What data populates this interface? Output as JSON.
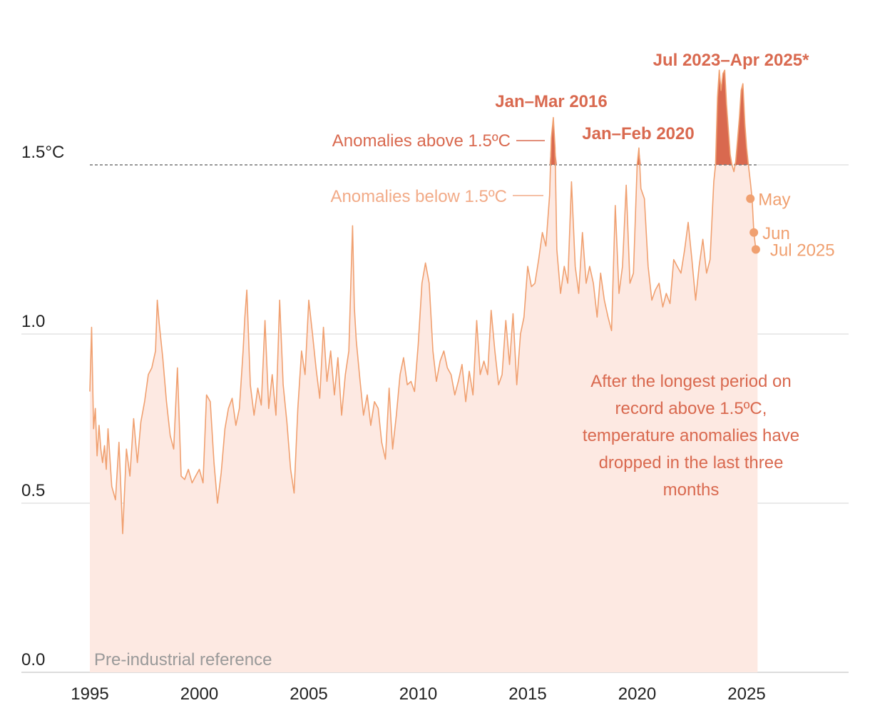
{
  "chart_data": {
    "type": "area",
    "title": "",
    "xlabel": "",
    "ylabel": "",
    "xlim": [
      1995,
      2029
    ],
    "ylim": [
      0,
      1.9
    ],
    "y_ticks": [
      {
        "value": 0.0,
        "label": "0.0"
      },
      {
        "value": 0.5,
        "label": "0.5"
      },
      {
        "value": 1.0,
        "label": "1.0"
      },
      {
        "value": 1.5,
        "label": "1.5°C"
      }
    ],
    "x_ticks": [
      {
        "value": 1995,
        "label": "1995"
      },
      {
        "value": 2000,
        "label": "2000"
      },
      {
        "value": 2005,
        "label": "2005"
      },
      {
        "value": 2010,
        "label": "2010"
      },
      {
        "value": 2015,
        "label": "2015"
      },
      {
        "value": 2020,
        "label": "2020"
      },
      {
        "value": 2025,
        "label": "2025"
      }
    ],
    "grid": "horizontal",
    "threshold": 1.5,
    "colors": {
      "line": "#f0a070",
      "fill_below": "#fde9e2",
      "fill_above": "#d9694f",
      "threshold_line": "#777777",
      "grid": "#dddddd",
      "annotation_dark": "#d9694f",
      "annotation_light": "#f2ab88",
      "point": "#f0a070"
    },
    "series": [
      {
        "name": "",
        "x": [
          1995.0,
          1995.08,
          1995.17,
          1995.25,
          1995.33,
          1995.42,
          1995.5,
          1995.58,
          1995.67,
          1995.75,
          1995.83,
          1995.92,
          1996.0,
          1996.17,
          1996.33,
          1996.5,
          1996.67,
          1996.83,
          1997.0,
          1997.17,
          1997.33,
          1997.5,
          1997.67,
          1997.83,
          1998.0,
          1998.08,
          1998.17,
          1998.33,
          1998.5,
          1998.67,
          1998.83,
          1999.0,
          1999.17,
          1999.33,
          1999.5,
          1999.67,
          1999.83,
          2000.0,
          2000.17,
          2000.33,
          2000.5,
          2000.67,
          2000.83,
          2001.0,
          2001.17,
          2001.33,
          2001.5,
          2001.67,
          2001.83,
          2002.0,
          2002.08,
          2002.17,
          2002.33,
          2002.5,
          2002.67,
          2002.83,
          2003.0,
          2003.17,
          2003.33,
          2003.5,
          2003.67,
          2003.83,
          2004.0,
          2004.17,
          2004.33,
          2004.5,
          2004.67,
          2004.83,
          2005.0,
          2005.17,
          2005.33,
          2005.5,
          2005.67,
          2005.83,
          2006.0,
          2006.17,
          2006.33,
          2006.5,
          2006.67,
          2006.83,
          2007.0,
          2007.08,
          2007.17,
          2007.33,
          2007.5,
          2007.67,
          2007.83,
          2008.0,
          2008.17,
          2008.33,
          2008.5,
          2008.67,
          2008.83,
          2009.0,
          2009.17,
          2009.33,
          2009.5,
          2009.67,
          2009.83,
          2010.0,
          2010.17,
          2010.33,
          2010.5,
          2010.67,
          2010.83,
          2011.0,
          2011.17,
          2011.33,
          2011.5,
          2011.67,
          2011.83,
          2012.0,
          2012.17,
          2012.33,
          2012.5,
          2012.67,
          2012.83,
          2013.0,
          2013.17,
          2013.33,
          2013.5,
          2013.67,
          2013.83,
          2014.0,
          2014.17,
          2014.33,
          2014.5,
          2014.67,
          2014.83,
          2015.0,
          2015.17,
          2015.33,
          2015.5,
          2015.67,
          2015.83,
          2016.0,
          2016.08,
          2016.17,
          2016.25,
          2016.33,
          2016.5,
          2016.67,
          2016.83,
          2017.0,
          2017.17,
          2017.33,
          2017.5,
          2017.67,
          2017.83,
          2018.0,
          2018.17,
          2018.33,
          2018.5,
          2018.67,
          2018.83,
          2019.0,
          2019.17,
          2019.33,
          2019.5,
          2019.67,
          2019.83,
          2020.0,
          2020.08,
          2020.17,
          2020.33,
          2020.5,
          2020.67,
          2020.83,
          2021.0,
          2021.17,
          2021.33,
          2021.5,
          2021.67,
          2021.83,
          2022.0,
          2022.17,
          2022.33,
          2022.5,
          2022.67,
          2022.83,
          2023.0,
          2023.17,
          2023.33,
          2023.5,
          2023.58,
          2023.67,
          2023.75,
          2023.83,
          2023.92,
          2024.0,
          2024.08,
          2024.17,
          2024.25,
          2024.33,
          2024.42,
          2024.5,
          2024.58,
          2024.67,
          2024.75,
          2024.83,
          2024.92,
          2025.0,
          2025.08,
          2025.17,
          2025.25,
          2025.33,
          2025.42,
          2025.5
        ],
        "y": [
          0.83,
          1.02,
          0.72,
          0.78,
          0.64,
          0.73,
          0.66,
          0.62,
          0.67,
          0.6,
          0.72,
          0.63,
          0.55,
          0.51,
          0.68,
          0.41,
          0.66,
          0.58,
          0.75,
          0.62,
          0.74,
          0.8,
          0.88,
          0.9,
          0.95,
          1.1,
          1.03,
          0.93,
          0.8,
          0.7,
          0.66,
          0.9,
          0.58,
          0.57,
          0.6,
          0.56,
          0.58,
          0.6,
          0.56,
          0.82,
          0.8,
          0.62,
          0.5,
          0.59,
          0.72,
          0.78,
          0.81,
          0.73,
          0.78,
          0.95,
          1.05,
          1.13,
          0.85,
          0.76,
          0.84,
          0.79,
          1.04,
          0.78,
          0.88,
          0.76,
          1.1,
          0.85,
          0.74,
          0.6,
          0.53,
          0.78,
          0.95,
          0.88,
          1.1,
          1.0,
          0.9,
          0.81,
          1.02,
          0.86,
          0.95,
          0.82,
          0.93,
          0.76,
          0.88,
          0.95,
          1.32,
          1.08,
          0.98,
          0.87,
          0.76,
          0.82,
          0.73,
          0.8,
          0.78,
          0.68,
          0.63,
          0.84,
          0.66,
          0.76,
          0.88,
          0.93,
          0.85,
          0.86,
          0.83,
          0.97,
          1.15,
          1.21,
          1.15,
          0.95,
          0.86,
          0.92,
          0.95,
          0.9,
          0.88,
          0.82,
          0.86,
          0.91,
          0.8,
          0.89,
          0.82,
          1.04,
          0.88,
          0.92,
          0.88,
          1.07,
          0.95,
          0.85,
          0.88,
          1.04,
          0.91,
          1.06,
          0.85,
          1.0,
          1.05,
          1.2,
          1.14,
          1.15,
          1.22,
          1.3,
          1.26,
          1.41,
          1.58,
          1.64,
          1.55,
          1.25,
          1.12,
          1.2,
          1.15,
          1.45,
          1.2,
          1.12,
          1.3,
          1.15,
          1.2,
          1.15,
          1.05,
          1.18,
          1.1,
          1.05,
          1.01,
          1.38,
          1.12,
          1.2,
          1.44,
          1.15,
          1.18,
          1.5,
          1.55,
          1.43,
          1.4,
          1.2,
          1.1,
          1.13,
          1.15,
          1.08,
          1.12,
          1.09,
          1.22,
          1.2,
          1.18,
          1.25,
          1.33,
          1.22,
          1.1,
          1.2,
          1.28,
          1.18,
          1.22,
          1.45,
          1.5,
          1.7,
          1.78,
          1.72,
          1.77,
          1.78,
          1.68,
          1.6,
          1.53,
          1.5,
          1.48,
          1.51,
          1.57,
          1.64,
          1.72,
          1.74,
          1.62,
          1.55,
          1.5,
          1.45,
          1.4,
          1.3,
          1.25,
          1.25
        ]
      }
    ],
    "points": [
      {
        "x": 2025.17,
        "y": 1.4,
        "label": "May"
      },
      {
        "x": 2025.33,
        "y": 1.3,
        "label": "Jun"
      },
      {
        "x": 2025.42,
        "y": 1.25,
        "label": "Jul 2025"
      }
    ],
    "annotations": {
      "above_label": "Anomalies above 1.5ºC",
      "below_label": "Anomalies below 1.5ºC",
      "peak_2016": "Jan–Mar 2016",
      "peak_2020": "Jan–Feb 2020",
      "peak_2023": "Jul 2023–Apr 2025*",
      "note_lines": [
        "After the longest period on",
        "record above 1.5ºC,",
        "temperature anomalies have",
        "dropped in the last three",
        "months"
      ],
      "reference": "Pre-industrial reference"
    }
  }
}
